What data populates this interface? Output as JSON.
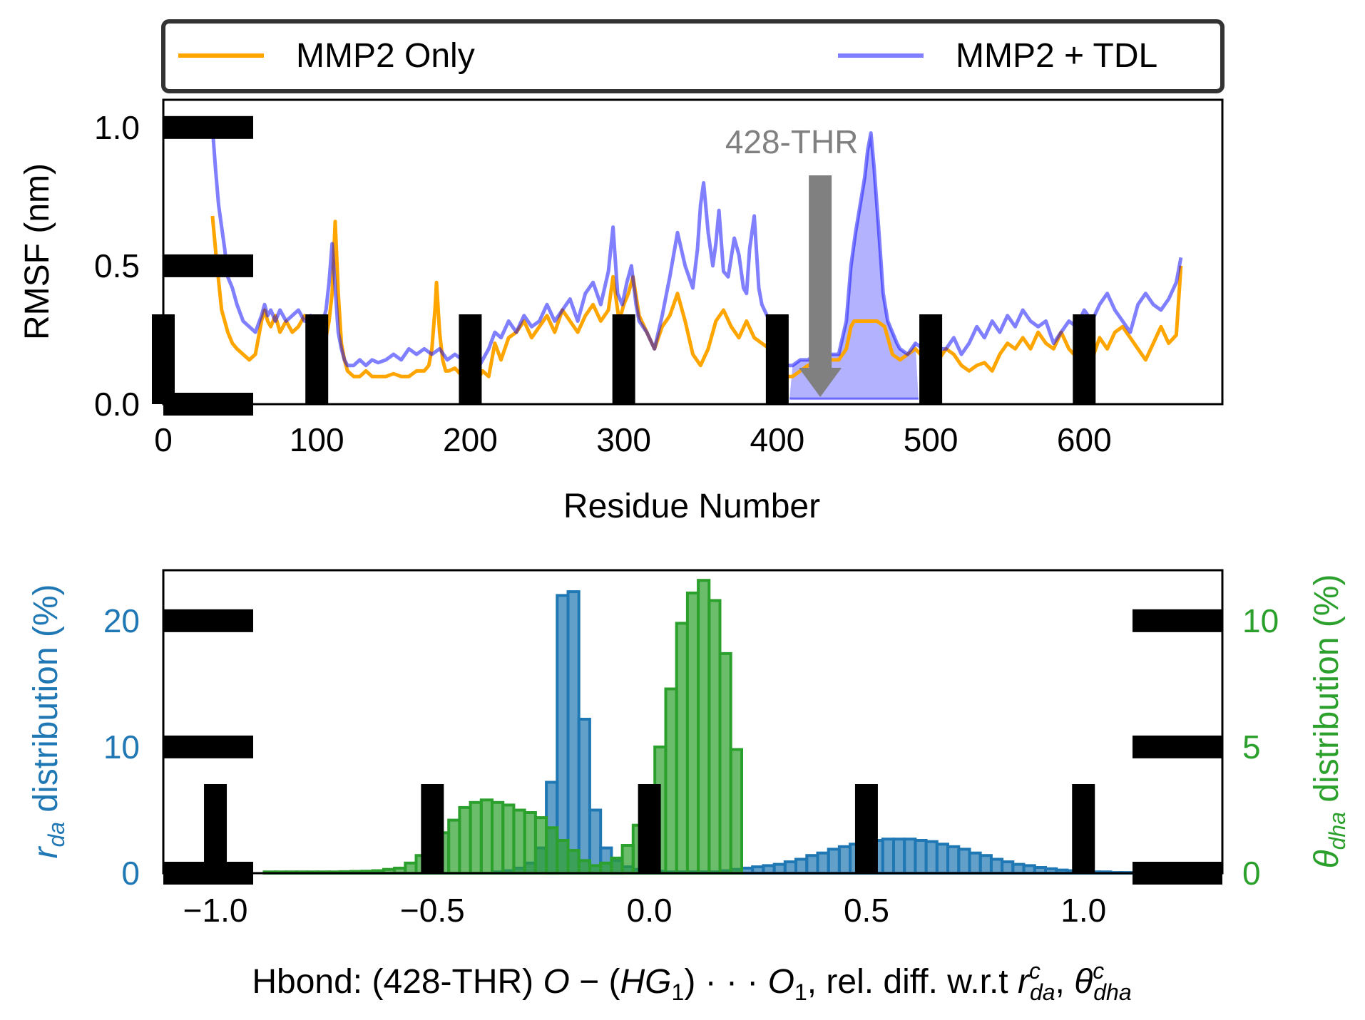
{
  "chart_data": [
    {
      "type": "line",
      "xlabel": "Residue Number",
      "ylabel": "RMSF (nm)",
      "xlim": [
        0,
        690
      ],
      "ylim": [
        0,
        1.1
      ],
      "xticks": [
        0,
        100,
        200,
        300,
        400,
        500,
        600
      ],
      "yticks": [
        0.0,
        0.5,
        1.0
      ],
      "xtick_labels": [
        "0",
        "100",
        "200",
        "300",
        "400",
        "500",
        "600"
      ],
      "ytick_labels": [
        "0.0",
        "0.5",
        "1.0"
      ],
      "legend": {
        "placement": "top (above plot, 2 columns)"
      },
      "annotation": {
        "text": "428-THR",
        "x": 428,
        "arrow_color": "#808080"
      },
      "shaded_region": {
        "x_from": 408,
        "x_to": 492,
        "color": "#0000ff",
        "alpha": 0.3
      },
      "series": [
        {
          "name": "MMP2 Only",
          "color": "#ffa500",
          "x": [
            32,
            35,
            38,
            40,
            42,
            45,
            48,
            52,
            56,
            60,
            64,
            66,
            68,
            70,
            73,
            76,
            80,
            84,
            88,
            92,
            96,
            100,
            103,
            106,
            108,
            110,
            112,
            114,
            116,
            118,
            120,
            124,
            128,
            132,
            136,
            140,
            145,
            150,
            155,
            160,
            165,
            170,
            173,
            175,
            177,
            178,
            180,
            182,
            184,
            186,
            190,
            195,
            200,
            204,
            208,
            212,
            216,
            220,
            225,
            230,
            235,
            240,
            245,
            250,
            255,
            260,
            265,
            270,
            275,
            280,
            285,
            290,
            293,
            295,
            297,
            300,
            303,
            306,
            310,
            315,
            320,
            325,
            330,
            335,
            340,
            345,
            350,
            355,
            360,
            365,
            370,
            375,
            380,
            385,
            390,
            395,
            400,
            405,
            410,
            415,
            420,
            425,
            430,
            435,
            440,
            445,
            448,
            450,
            452,
            455,
            460,
            465,
            470,
            475,
            480,
            485,
            490,
            495,
            500,
            505,
            510,
            515,
            520,
            525,
            530,
            535,
            540,
            545,
            550,
            555,
            560,
            565,
            570,
            575,
            580,
            585,
            590,
            595,
            600,
            605,
            610,
            615,
            620,
            625,
            630,
            635,
            640,
            645,
            650,
            655,
            660,
            663
          ],
          "values": [
            0.68,
            0.5,
            0.34,
            0.3,
            0.26,
            0.22,
            0.2,
            0.18,
            0.16,
            0.18,
            0.3,
            0.34,
            0.3,
            0.28,
            0.32,
            0.26,
            0.3,
            0.26,
            0.28,
            0.32,
            0.28,
            0.3,
            0.22,
            0.24,
            0.3,
            0.4,
            0.66,
            0.4,
            0.22,
            0.16,
            0.12,
            0.1,
            0.1,
            0.12,
            0.1,
            0.1,
            0.1,
            0.11,
            0.1,
            0.1,
            0.12,
            0.12,
            0.14,
            0.2,
            0.34,
            0.44,
            0.26,
            0.16,
            0.12,
            0.12,
            0.13,
            0.1,
            0.1,
            0.08,
            0.12,
            0.1,
            0.22,
            0.16,
            0.24,
            0.26,
            0.3,
            0.24,
            0.28,
            0.32,
            0.26,
            0.34,
            0.3,
            0.26,
            0.32,
            0.36,
            0.3,
            0.34,
            0.46,
            0.38,
            0.3,
            0.36,
            0.4,
            0.46,
            0.32,
            0.26,
            0.2,
            0.28,
            0.32,
            0.4,
            0.3,
            0.18,
            0.14,
            0.2,
            0.3,
            0.34,
            0.28,
            0.24,
            0.3,
            0.24,
            0.22,
            0.2,
            0.12,
            0.1,
            0.1,
            0.12,
            0.14,
            0.15,
            0.14,
            0.16,
            0.16,
            0.2,
            0.28,
            0.3,
            0.3,
            0.3,
            0.3,
            0.3,
            0.28,
            0.18,
            0.16,
            0.18,
            0.2,
            0.17,
            0.18,
            0.16,
            0.2,
            0.18,
            0.14,
            0.12,
            0.14,
            0.15,
            0.12,
            0.18,
            0.22,
            0.2,
            0.24,
            0.2,
            0.26,
            0.22,
            0.2,
            0.26,
            0.2,
            0.17,
            0.14,
            0.16,
            0.24,
            0.2,
            0.26,
            0.28,
            0.24,
            0.2,
            0.16,
            0.22,
            0.28,
            0.22,
            0.25,
            0.5
          ]
        },
        {
          "name": "MMP2 + TDL",
          "color": "#0000ff",
          "x": [
            32,
            34,
            36,
            38,
            40,
            42,
            45,
            48,
            52,
            56,
            60,
            64,
            66,
            68,
            70,
            73,
            76,
            80,
            84,
            88,
            92,
            96,
            100,
            103,
            106,
            108,
            110,
            112,
            114,
            116,
            118,
            120,
            124,
            128,
            132,
            136,
            140,
            145,
            150,
            155,
            160,
            165,
            170,
            175,
            180,
            185,
            190,
            195,
            200,
            204,
            208,
            212,
            216,
            220,
            225,
            230,
            235,
            240,
            245,
            250,
            255,
            260,
            265,
            270,
            275,
            280,
            285,
            290,
            293,
            296,
            299,
            302,
            305,
            308,
            310,
            315,
            320,
            325,
            330,
            335,
            340,
            345,
            348,
            350,
            352,
            355,
            358,
            360,
            362,
            365,
            368,
            372,
            375,
            378,
            380,
            382,
            385,
            388,
            390,
            395,
            400,
            405,
            410,
            415,
            420,
            425,
            430,
            435,
            440,
            445,
            448,
            451,
            454,
            457,
            459,
            461,
            463,
            466,
            469,
            472,
            475,
            478,
            480,
            485,
            490,
            495,
            500,
            505,
            510,
            515,
            520,
            525,
            530,
            535,
            540,
            545,
            550,
            555,
            560,
            565,
            570,
            575,
            580,
            585,
            590,
            595,
            600,
            605,
            610,
            615,
            620,
            625,
            630,
            635,
            640,
            645,
            650,
            655,
            660,
            663
          ],
          "values": [
            1.0,
            0.85,
            0.72,
            0.64,
            0.56,
            0.46,
            0.42,
            0.36,
            0.3,
            0.28,
            0.26,
            0.32,
            0.36,
            0.32,
            0.34,
            0.3,
            0.34,
            0.3,
            0.32,
            0.34,
            0.3,
            0.32,
            0.26,
            0.28,
            0.34,
            0.44,
            0.58,
            0.42,
            0.26,
            0.2,
            0.16,
            0.14,
            0.14,
            0.16,
            0.14,
            0.16,
            0.15,
            0.16,
            0.18,
            0.16,
            0.2,
            0.18,
            0.2,
            0.18,
            0.2,
            0.16,
            0.18,
            0.16,
            0.14,
            0.12,
            0.16,
            0.2,
            0.26,
            0.24,
            0.3,
            0.26,
            0.32,
            0.28,
            0.3,
            0.36,
            0.3,
            0.34,
            0.38,
            0.3,
            0.4,
            0.44,
            0.36,
            0.48,
            0.64,
            0.4,
            0.36,
            0.44,
            0.5,
            0.36,
            0.3,
            0.26,
            0.2,
            0.32,
            0.46,
            0.62,
            0.5,
            0.42,
            0.56,
            0.72,
            0.8,
            0.62,
            0.5,
            0.58,
            0.7,
            0.48,
            0.46,
            0.6,
            0.54,
            0.42,
            0.4,
            0.56,
            0.68,
            0.42,
            0.36,
            0.3,
            0.16,
            0.14,
            0.14,
            0.16,
            0.16,
            0.18,
            0.17,
            0.18,
            0.18,
            0.3,
            0.5,
            0.62,
            0.72,
            0.82,
            0.92,
            0.98,
            0.86,
            0.64,
            0.4,
            0.3,
            0.26,
            0.22,
            0.2,
            0.18,
            0.22,
            0.2,
            0.24,
            0.2,
            0.2,
            0.24,
            0.18,
            0.22,
            0.28,
            0.24,
            0.3,
            0.26,
            0.32,
            0.28,
            0.34,
            0.3,
            0.28,
            0.3,
            0.22,
            0.26,
            0.3,
            0.28,
            0.34,
            0.3,
            0.36,
            0.4,
            0.34,
            0.3,
            0.26,
            0.36,
            0.4,
            0.36,
            0.34,
            0.38,
            0.44,
            0.53
          ]
        }
      ]
    },
    {
      "type": "bar",
      "xlabel": "Hbond: (428-THR) O − (HG₁) ··· O₁, rel. diff. w.r.t r^c_da, θ^c_dha",
      "ylabel_left": "r_da distribution (%)",
      "ylabel_right": "θ_dha distribution (%)",
      "xlim": [
        -1.12,
        1.32
      ],
      "ylim_left": [
        0,
        24
      ],
      "ylim_right": [
        0,
        12
      ],
      "xticks": [
        -1.0,
        -0.5,
        0.0,
        0.5,
        1.0
      ],
      "xtick_labels": [
        "−1.0",
        "−0.5",
        "0.0",
        "0.5",
        "1.0"
      ],
      "yticks_left": [
        0,
        10,
        20
      ],
      "ytick_labels_left": [
        "0",
        "10",
        "20"
      ],
      "yticks_right": [
        0,
        5,
        10
      ],
      "ytick_labels_right": [
        "0",
        "5",
        "10"
      ],
      "series": [
        {
          "name": "r_da",
          "axis": "left",
          "color": "#1f77b4",
          "bin_width": 0.025,
          "x": [
            -0.35,
            -0.325,
            -0.3,
            -0.275,
            -0.25,
            -0.225,
            -0.2,
            -0.175,
            -0.15,
            -0.125,
            -0.1,
            -0.075,
            -0.05,
            -0.025,
            0.0,
            0.025,
            0.05,
            0.075,
            0.1,
            0.125,
            0.15,
            0.175,
            0.2,
            0.225,
            0.25,
            0.275,
            0.3,
            0.325,
            0.35,
            0.375,
            0.4,
            0.425,
            0.45,
            0.475,
            0.5,
            0.525,
            0.55,
            0.575,
            0.6,
            0.625,
            0.65,
            0.675,
            0.7,
            0.725,
            0.75,
            0.775,
            0.8,
            0.825,
            0.85,
            0.875,
            0.9,
            0.925,
            0.95,
            0.975,
            1.0,
            1.025,
            1.05,
            1.075,
            1.1
          ],
          "values": [
            0.1,
            0.2,
            0.4,
            0.8,
            2.0,
            7.2,
            22.0,
            22.3,
            12.2,
            5.0,
            2.0,
            1.0,
            0.5,
            0.3,
            0.2,
            0.15,
            0.1,
            0.1,
            0.1,
            0.1,
            0.1,
            0.2,
            0.3,
            0.4,
            0.5,
            0.6,
            0.7,
            0.9,
            1.1,
            1.4,
            1.6,
            1.9,
            2.1,
            2.3,
            2.5,
            2.6,
            2.7,
            2.7,
            2.7,
            2.6,
            2.5,
            2.3,
            2.1,
            1.9,
            1.6,
            1.4,
            1.1,
            0.9,
            0.7,
            0.6,
            0.45,
            0.35,
            0.25,
            0.2,
            0.15,
            0.1,
            0.1,
            0.05,
            0.05
          ]
        },
        {
          "name": "θ_dha",
          "axis": "right",
          "color": "#2ca02c",
          "bin_width": 0.025,
          "x": [
            -0.875,
            -0.85,
            -0.825,
            -0.8,
            -0.775,
            -0.75,
            -0.725,
            -0.7,
            -0.675,
            -0.65,
            -0.625,
            -0.6,
            -0.575,
            -0.55,
            -0.525,
            -0.5,
            -0.475,
            -0.45,
            -0.425,
            -0.4,
            -0.375,
            -0.35,
            -0.325,
            -0.3,
            -0.275,
            -0.25,
            -0.225,
            -0.2,
            -0.175,
            -0.15,
            -0.125,
            -0.1,
            -0.075,
            -0.05,
            -0.025,
            0.0,
            0.025,
            0.05,
            0.075,
            0.1,
            0.125,
            0.15,
            0.175,
            0.2
          ],
          "values": [
            0.05,
            0.05,
            0.05,
            0.05,
            0.05,
            0.05,
            0.05,
            0.06,
            0.07,
            0.08,
            0.1,
            0.15,
            0.2,
            0.4,
            0.7,
            1.1,
            1.6,
            2.1,
            2.6,
            2.8,
            2.9,
            2.8,
            2.7,
            2.5,
            2.4,
            2.2,
            1.8,
            1.3,
            0.9,
            0.5,
            0.3,
            0.4,
            0.6,
            1.1,
            1.9,
            3.3,
            5.0,
            7.3,
            9.9,
            11.1,
            11.6,
            10.8,
            8.7,
            4.9
          ]
        }
      ]
    }
  ]
}
